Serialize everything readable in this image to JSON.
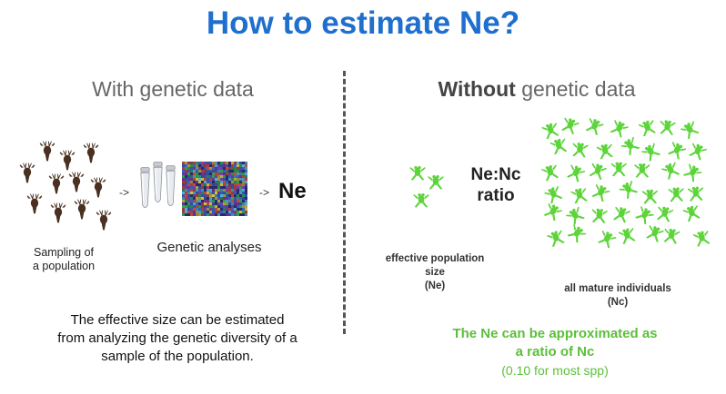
{
  "title": "How to estimate Ne?",
  "left": {
    "heading": "With genetic data",
    "sampling_label_1": "Sampling of",
    "sampling_label_2": "a population",
    "arrow1": "->",
    "arrow2": "->",
    "genetic_label": "Genetic analyses",
    "result": "Ne",
    "description_1": "The effective size can be estimated",
    "description_2": "from analyzing the genetic diversity of a",
    "description_3": "sample of the population."
  },
  "right": {
    "heading_bold": "Without",
    "heading_rest": " genetic data",
    "ratio_1": "Ne:Nc",
    "ratio_2": "ratio",
    "eff_label_1": "effective population",
    "eff_label_2": "size",
    "eff_label_3": "(Ne)",
    "mature_label_1": "all mature individuals",
    "mature_label_2": "(Nc)",
    "note_1": "The Ne can be approximated as",
    "note_2": "a ratio of Nc",
    "note_3": "(0.10 for most spp)"
  },
  "icons": {
    "deer": "deer-icon",
    "tube": "test-tube-icon",
    "gel": "dna-sequence-gel-icon",
    "frog": "frog-icon"
  },
  "colors": {
    "title": "#1f6fcf",
    "frog": "#5cd43a",
    "deer": "#4a3020",
    "note": "#5cbf3a"
  }
}
